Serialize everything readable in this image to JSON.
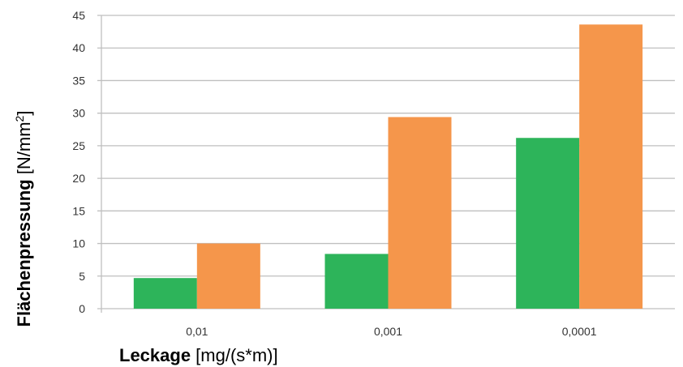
{
  "chart_data": {
    "type": "bar",
    "categories": [
      "0,01",
      "0,001",
      "0,0001"
    ],
    "series": [
      {
        "values": [
          4.7,
          8.4,
          26.2
        ],
        "color": "#2db45a"
      },
      {
        "values": [
          10.0,
          29.4,
          43.6
        ],
        "color": "#f5964b"
      }
    ],
    "ylim": [
      0,
      45
    ],
    "yticks": [
      0,
      5,
      10,
      15,
      20,
      25,
      30,
      35,
      40,
      45
    ],
    "xlabel": {
      "bold": "Leckage",
      "rest": " [mg/(s*m)]"
    },
    "ylabel": {
      "bold": "Flächenpressung",
      "rest": " [N/mm",
      "sup": "2",
      "end": "]"
    },
    "grid": true,
    "gridline_color": "#bfbfbf"
  }
}
